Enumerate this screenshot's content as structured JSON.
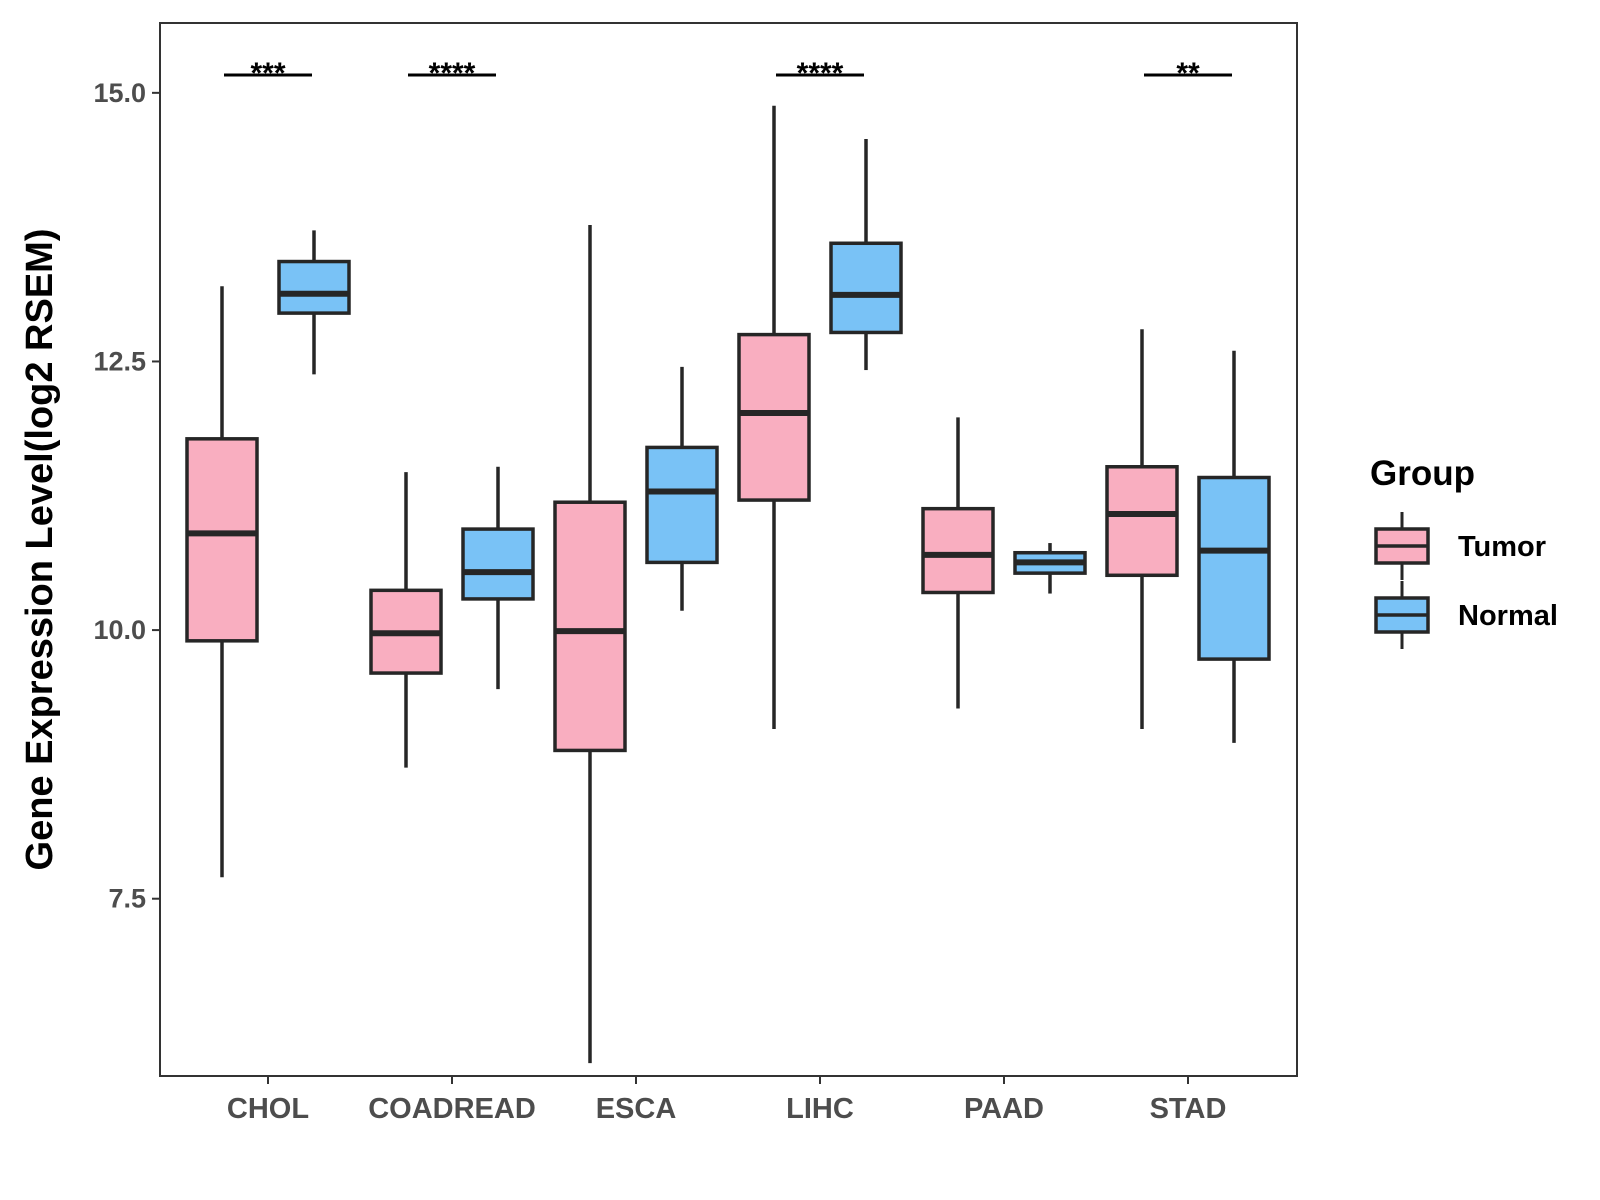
{
  "chart_data": {
    "type": "boxplot",
    "ylabel": "Gene Expression Level(log2 RSEM)",
    "xlabel": "",
    "ylim": [
      5.85,
      15.65
    ],
    "yticks": [
      7.5,
      10.0,
      12.5,
      15.0
    ],
    "ytick_labels": [
      "7.5",
      "10.0",
      "12.5",
      "15.0"
    ],
    "categories": [
      "CHOL",
      "COADREAD",
      "ESCA",
      "LIHC",
      "PAAD",
      "STAD"
    ],
    "legend": {
      "title": "Group",
      "position": "right",
      "items": [
        {
          "name": "Tumor",
          "color": "#f9aec0"
        },
        {
          "name": "Normal",
          "color": "#79c2f6"
        }
      ]
    },
    "series": [
      {
        "name": "Tumor",
        "color": "#f9aec0",
        "boxes": [
          {
            "category": "CHOL",
            "min": 7.7,
            "q1": 9.9,
            "median": 10.9,
            "q3": 11.78,
            "max": 13.2
          },
          {
            "category": "COADREAD",
            "min": 8.72,
            "q1": 9.6,
            "median": 9.97,
            "q3": 10.37,
            "max": 11.47
          },
          {
            "category": "ESCA",
            "min": 5.97,
            "q1": 8.88,
            "median": 9.99,
            "q3": 11.19,
            "max": 13.77
          },
          {
            "category": "LIHC",
            "min": 9.08,
            "q1": 11.21,
            "median": 12.02,
            "q3": 12.75,
            "max": 14.88
          },
          {
            "category": "PAAD",
            "min": 9.27,
            "q1": 10.35,
            "median": 10.7,
            "q3": 11.13,
            "max": 11.98
          },
          {
            "category": "STAD",
            "min": 9.08,
            "q1": 10.51,
            "median": 11.08,
            "q3": 11.52,
            "max": 12.8
          }
        ]
      },
      {
        "name": "Normal",
        "color": "#79c2f6",
        "boxes": [
          {
            "category": "CHOL",
            "min": 12.38,
            "q1": 12.95,
            "median": 13.13,
            "q3": 13.43,
            "max": 13.72
          },
          {
            "category": "COADREAD",
            "min": 9.45,
            "q1": 10.29,
            "median": 10.54,
            "q3": 10.94,
            "max": 11.52
          },
          {
            "category": "ESCA",
            "min": 10.18,
            "q1": 10.63,
            "median": 11.29,
            "q3": 11.7,
            "max": 12.45
          },
          {
            "category": "LIHC",
            "min": 12.42,
            "q1": 12.77,
            "median": 13.12,
            "q3": 13.6,
            "max": 14.57
          },
          {
            "category": "PAAD",
            "min": 10.34,
            "q1": 10.53,
            "median": 10.63,
            "q3": 10.72,
            "max": 10.81
          },
          {
            "category": "STAD",
            "min": 8.95,
            "q1": 9.73,
            "median": 10.74,
            "q3": 11.42,
            "max": 12.6
          }
        ]
      }
    ],
    "significance": [
      {
        "category": "CHOL",
        "label": "***"
      },
      {
        "category": "COADREAD",
        "label": "****"
      },
      {
        "category": "LIHC",
        "label": "****"
      },
      {
        "category": "STAD",
        "label": "**"
      }
    ]
  }
}
